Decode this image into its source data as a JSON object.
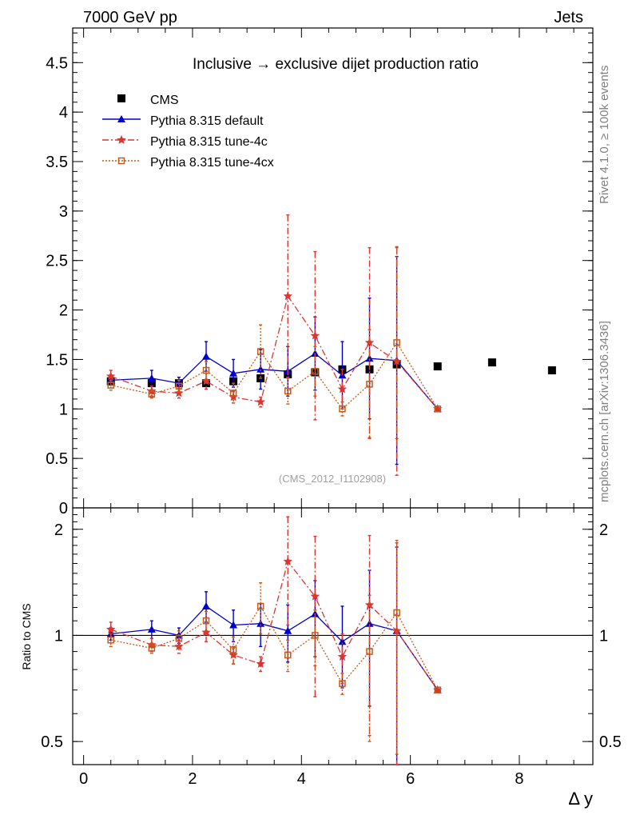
{
  "header": {
    "left": "7000 GeV pp",
    "right": "Jets",
    "side_label_top": "Rivet 4.1.0, ≥ 100k events",
    "side_label_bottom": "mcplots.cern.ch [arXiv:1306.3436]",
    "analysis_id": "(CMS_2012_I1102908)"
  },
  "chart_data": [
    {
      "type": "scatter",
      "panel": "main",
      "title": "Inclusive → exclusive dijet production ratio",
      "xlabel": "Δ y",
      "ylabel": "",
      "xlim": [
        -0.2,
        9.35
      ],
      "ylim": [
        0,
        4.85
      ],
      "x_ticks": [
        0,
        2,
        4,
        6,
        8
      ],
      "y_ticks": [
        0,
        0.5,
        1,
        1.5,
        2,
        2.5,
        3,
        3.5,
        4,
        4.5
      ],
      "y_tick_labels": [
        "0",
        "0.5",
        "1",
        "1.5",
        "2",
        "2.5",
        "3",
        "3.5",
        "4",
        "4.5"
      ],
      "legend_position": "top-left",
      "series": [
        {
          "name": "CMS",
          "color": "#000000",
          "marker": "filled-square",
          "x": [
            0.5,
            1.25,
            1.75,
            2.25,
            2.75,
            3.25,
            3.75,
            4.25,
            4.75,
            5.25,
            5.75,
            6.5,
            7.5,
            8.6
          ],
          "y": [
            1.28,
            1.26,
            1.26,
            1.26,
            1.28,
            1.31,
            1.35,
            1.37,
            1.4,
            1.4,
            1.45,
            1.43,
            1.47,
            1.39
          ]
        },
        {
          "name": "Pythia 8.315 default",
          "color": "#0000cc",
          "marker": "filled-triangle",
          "line": "solid",
          "x": [
            0.5,
            1.25,
            1.75,
            2.25,
            2.75,
            3.25,
            3.75,
            4.25,
            4.75,
            5.25,
            5.75,
            6.5
          ],
          "y": [
            1.29,
            1.31,
            1.26,
            1.53,
            1.36,
            1.4,
            1.38,
            1.56,
            1.34,
            1.51,
            1.49,
            1.0
          ],
          "err": [
            0.05,
            0.08,
            0.06,
            0.15,
            0.14,
            0.2,
            0.25,
            0.37,
            0.34,
            0.61,
            1.05,
            0.0
          ]
        },
        {
          "name": "Pythia 8.315 tune-4c",
          "color": "#dd3333",
          "marker": "star",
          "line": "dash-dot",
          "x": [
            0.5,
            1.25,
            1.75,
            2.25,
            2.75,
            3.25,
            3.75,
            4.25,
            4.75,
            5.25,
            5.75,
            6.5
          ],
          "y": [
            1.33,
            1.18,
            1.16,
            1.28,
            1.12,
            1.07,
            2.14,
            1.74,
            1.2,
            1.67,
            1.48,
            1.0
          ],
          "err": [
            0.06,
            0.05,
            0.05,
            0.08,
            0.06,
            0.05,
            0.82,
            0.85,
            0.2,
            0.96,
            1.15,
            0.0
          ]
        },
        {
          "name": "Pythia 8.315 tune-4cx",
          "color": "#c45a1a",
          "marker": "open-square",
          "line": "dotted",
          "x": [
            0.5,
            1.25,
            1.75,
            2.25,
            2.75,
            3.25,
            3.75,
            4.25,
            4.75,
            5.25,
            5.75,
            6.5
          ],
          "y": [
            1.24,
            1.15,
            1.23,
            1.39,
            1.16,
            1.58,
            1.18,
            1.38,
            1.0,
            1.25,
            1.67,
            1.0
          ],
          "err": [
            0.05,
            0.04,
            0.06,
            0.09,
            0.1,
            0.27,
            0.13,
            0.25,
            0.07,
            0.55,
            0.97,
            0.0
          ]
        }
      ]
    },
    {
      "type": "scatter",
      "panel": "ratio",
      "title": "",
      "xlabel": "Δ y",
      "ylabel": "Ratio to CMS",
      "xlim": [
        -0.2,
        9.35
      ],
      "ylim": [
        0.43,
        2.3
      ],
      "y_scale": "log",
      "x_ticks": [
        0,
        2,
        4,
        6,
        8
      ],
      "x_tick_labels": [
        "0",
        "2",
        "4",
        "6",
        "8"
      ],
      "y_ticks": [
        0.5,
        1,
        2
      ],
      "y_tick_labels": [
        "0.5",
        "1",
        "2"
      ],
      "reference_line": 1,
      "series": [
        {
          "name": "Pythia 8.315 default",
          "color": "#0000cc",
          "marker": "filled-triangle",
          "line": "solid",
          "x": [
            0.5,
            1.25,
            1.75,
            2.25,
            2.75,
            3.25,
            3.75,
            4.25,
            4.75,
            5.25,
            5.75,
            6.5
          ],
          "y": [
            1.01,
            1.04,
            1.0,
            1.21,
            1.07,
            1.08,
            1.03,
            1.15,
            0.96,
            1.08,
            1.03,
            0.7
          ],
          "err": [
            0.04,
            0.06,
            0.05,
            0.12,
            0.11,
            0.15,
            0.19,
            0.28,
            0.25,
            0.45,
            0.75,
            0.0
          ]
        },
        {
          "name": "Pythia 8.315 tune-4c",
          "color": "#dd3333",
          "marker": "star",
          "line": "dash-dot",
          "x": [
            0.5,
            1.25,
            1.75,
            2.25,
            2.75,
            3.25,
            3.75,
            4.25,
            4.75,
            5.25,
            5.75,
            6.5
          ],
          "y": [
            1.04,
            0.94,
            0.93,
            1.02,
            0.88,
            0.83,
            1.62,
            1.29,
            0.87,
            1.22,
            1.03,
            0.7
          ],
          "err": [
            0.05,
            0.04,
            0.04,
            0.06,
            0.05,
            0.04,
            0.55,
            0.62,
            0.14,
            0.7,
            0.8,
            0.0
          ]
        },
        {
          "name": "Pythia 8.315 tune-4cx",
          "color": "#c45a1a",
          "marker": "open-square",
          "line": "dotted",
          "x": [
            0.5,
            1.25,
            1.75,
            2.25,
            2.75,
            3.25,
            3.75,
            4.25,
            4.75,
            5.25,
            5.75,
            6.5
          ],
          "y": [
            0.97,
            0.92,
            0.98,
            1.1,
            0.91,
            1.21,
            0.88,
            1.0,
            0.73,
            0.9,
            1.16,
            0.7
          ],
          "err": [
            0.04,
            0.03,
            0.05,
            0.07,
            0.08,
            0.2,
            0.09,
            0.18,
            0.05,
            0.4,
            0.7,
            0.0
          ]
        }
      ]
    }
  ]
}
